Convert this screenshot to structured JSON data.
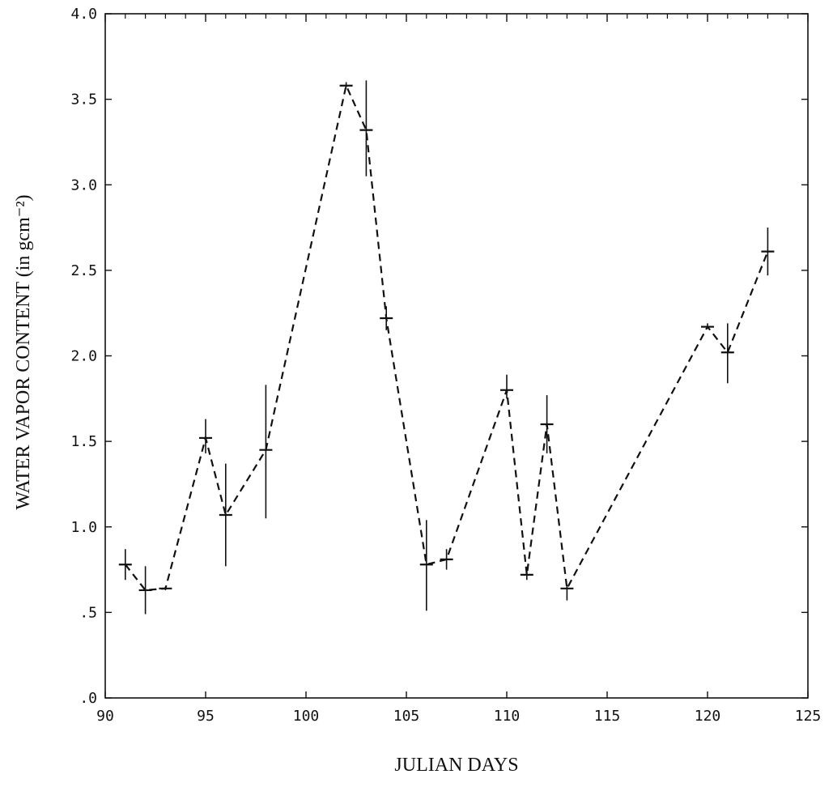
{
  "chart_data": {
    "type": "line",
    "xlabel": "JULIAN DAYS",
    "ylabel": "WATER VAPOR CONTENT (in gcm⁻²)",
    "xlim": [
      90,
      125
    ],
    "ylim": [
      0,
      4.0
    ],
    "x_ticks": [
      90,
      95,
      100,
      105,
      110,
      115,
      120,
      125
    ],
    "x_tick_labels": [
      "90",
      "95",
      "100",
      "105",
      "110",
      "115",
      "120",
      "125"
    ],
    "y_ticks": [
      0,
      0.5,
      1.0,
      1.5,
      2.0,
      2.5,
      3.0,
      3.5,
      4.0
    ],
    "y_tick_labels": [
      ".0",
      ".5",
      "1.0",
      "1.5",
      "2.0",
      "2.5",
      "3.0",
      "3.5",
      "4.0"
    ],
    "grid": false,
    "line_style": "dashed",
    "series": [
      {
        "x": [
          91,
          92,
          93,
          95,
          96,
          98,
          102,
          103,
          104,
          106,
          107,
          110,
          111,
          112,
          113,
          120,
          121,
          123
        ],
        "y": [
          0.78,
          0.63,
          0.64,
          1.52,
          1.07,
          1.45,
          3.58,
          3.32,
          2.22,
          0.78,
          0.81,
          1.8,
          0.72,
          1.6,
          0.64,
          2.17,
          2.02,
          2.61
        ],
        "err_low": [
          0.69,
          0.49,
          0.63,
          1.43,
          0.77,
          1.05,
          3.57,
          3.05,
          2.15,
          0.51,
          0.75,
          1.75,
          0.69,
          1.43,
          0.57,
          2.16,
          1.84,
          2.47
        ],
        "err_high": [
          0.87,
          0.77,
          0.65,
          1.63,
          1.37,
          1.83,
          3.6,
          3.61,
          2.29,
          1.04,
          0.87,
          1.89,
          0.75,
          1.77,
          0.66,
          2.19,
          2.19,
          2.75
        ]
      }
    ]
  }
}
